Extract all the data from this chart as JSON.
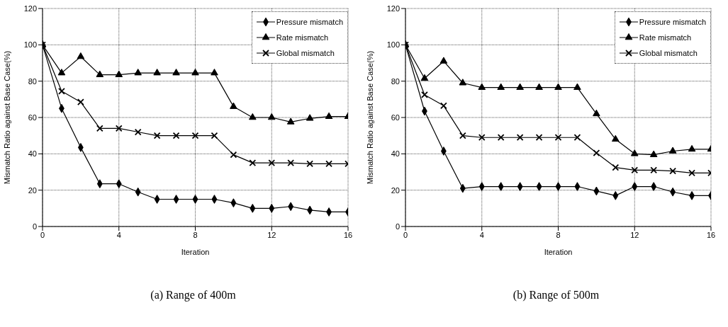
{
  "chart_data": [
    {
      "type": "line",
      "title": "(a) Range of 400m",
      "xlabel": "Iteration",
      "ylabel": "Mismatch Ratio against Base Case(%)",
      "x": [
        0,
        1,
        2,
        3,
        4,
        5,
        6,
        7,
        8,
        9,
        10,
        11,
        12,
        13,
        14,
        15,
        16
      ],
      "xlim": [
        0,
        16
      ],
      "xticks": [
        0,
        4,
        8,
        12,
        16
      ],
      "ylim": [
        0,
        120
      ],
      "yticks": [
        0,
        20,
        40,
        60,
        80,
        100,
        120
      ],
      "grid": true,
      "legend": "top right",
      "series": [
        {
          "name": "Pressure mismatch",
          "color": "#000000",
          "marker": "diamond",
          "values": [
            100,
            65,
            43.5,
            23.5,
            23.5,
            19,
            15,
            15,
            15,
            15,
            13,
            10,
            10,
            11,
            9,
            8,
            8
          ]
        },
        {
          "name": "Rate mismatch",
          "color": "#000000",
          "marker": "triangle",
          "values": [
            100,
            84.5,
            93.5,
            83.5,
            83.5,
            84.5,
            84.5,
            84.5,
            84.5,
            84.5,
            66,
            60,
            60,
            57.5,
            59.5,
            60.5,
            60.5
          ]
        },
        {
          "name": "Global mismatch",
          "color": "#000000",
          "marker": "cross",
          "values": [
            100,
            74.5,
            68.5,
            54,
            54,
            52,
            50,
            50,
            50,
            50,
            39.5,
            35,
            35,
            35,
            34.5,
            34.5,
            34.5
          ]
        }
      ]
    },
    {
      "type": "line",
      "title": "(b) Range of 500m",
      "xlabel": "Iteration",
      "ylabel": "Mismatch Ratio against Base Case(%)",
      "x": [
        0,
        1,
        2,
        3,
        4,
        5,
        6,
        7,
        8,
        9,
        10,
        11,
        12,
        13,
        14,
        15,
        16
      ],
      "xlim": [
        0,
        16
      ],
      "xticks": [
        0,
        4,
        8,
        12,
        16
      ],
      "ylim": [
        0,
        120
      ],
      "yticks": [
        0,
        20,
        40,
        60,
        80,
        100,
        120
      ],
      "grid": true,
      "legend": "top right",
      "series": [
        {
          "name": "Pressure mismatch",
          "color": "#000000",
          "marker": "diamond",
          "values": [
            100,
            63.5,
            41.5,
            21,
            22,
            22,
            22,
            22,
            22,
            22,
            19.5,
            17,
            22,
            22,
            19,
            17,
            17
          ]
        },
        {
          "name": "Rate mismatch",
          "color": "#000000",
          "marker": "triangle",
          "values": [
            100,
            81.5,
            91,
            79,
            76.5,
            76.5,
            76.5,
            76.5,
            76.5,
            76.5,
            62,
            48,
            40,
            39.5,
            41.5,
            42.5,
            42.5
          ]
        },
        {
          "name": "Global mismatch",
          "color": "#000000",
          "marker": "cross",
          "values": [
            100,
            72.5,
            66.5,
            50,
            49,
            49,
            49,
            49,
            49,
            49,
            40.5,
            32.5,
            31,
            31,
            30.5,
            29.5,
            29.5
          ]
        }
      ]
    }
  ]
}
